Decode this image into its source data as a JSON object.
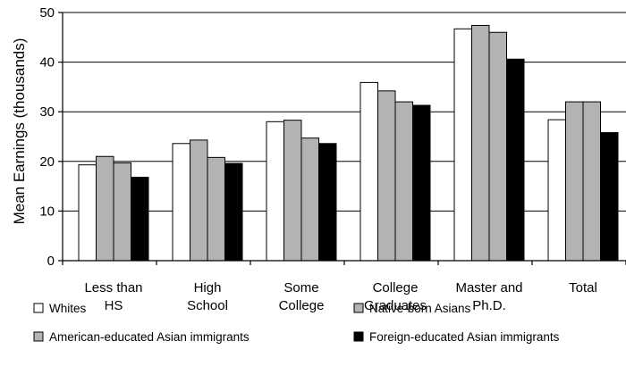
{
  "chart_data": {
    "type": "bar",
    "title": "",
    "xlabel": "",
    "ylabel": "Mean Earnings (thousands)",
    "ylim": [
      0,
      50
    ],
    "yticks": [
      0,
      10,
      20,
      30,
      40,
      50
    ],
    "grid": "horizontal",
    "legend_position": "bottom",
    "categories": [
      [
        "Less than",
        "HS"
      ],
      [
        "High",
        "School"
      ],
      [
        "Some",
        "College"
      ],
      [
        "College",
        "Graduates"
      ],
      [
        "Master and",
        "Ph.D."
      ],
      [
        "Total"
      ]
    ],
    "series": [
      {
        "name": "Whites",
        "color": "#ffffff",
        "values": [
          19.3,
          23.6,
          28.0,
          35.9,
          46.7,
          28.4
        ]
      },
      {
        "name": "Native-born Asians",
        "color": "#b3b3b3",
        "values": [
          21.0,
          24.3,
          28.3,
          34.2,
          47.4,
          32.0
        ]
      },
      {
        "name": "American-educated Asian immigrants",
        "color": "#b3b3b3",
        "values": [
          19.7,
          20.8,
          24.7,
          32.0,
          46.0,
          32.0
        ]
      },
      {
        "name": "Foreign-educated Asian immigrants",
        "color": "#000000",
        "values": [
          16.8,
          19.6,
          23.6,
          31.3,
          40.6,
          25.8
        ]
      }
    ]
  }
}
